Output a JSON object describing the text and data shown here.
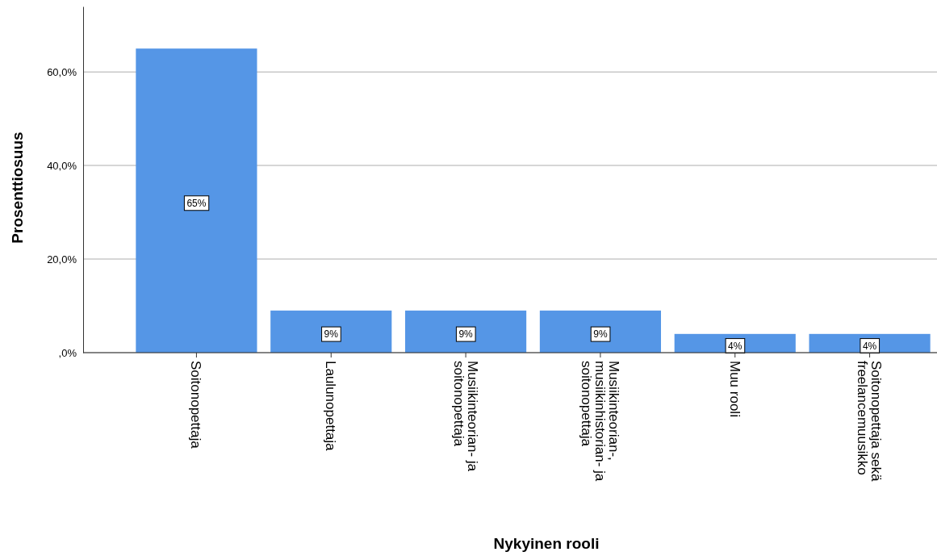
{
  "chart_data": {
    "type": "bar",
    "xlabel": "Nykyinen rooli",
    "ylabel": "Prosenttiosuus",
    "categories": [
      "Soitonopettaja",
      "Laulunopettaja",
      "Musiikinteorian- ja soitonopettaja",
      "Musiikinteorian-, musiikinhistorian- ja soitonopettaja",
      "Muu rooli",
      "Soitonopettaja sekä freelancemuusikko"
    ],
    "values": [
      65,
      9,
      9,
      9,
      4,
      4
    ],
    "value_labels": [
      "65%",
      "9%",
      "9%",
      "9%",
      "4%",
      "4%"
    ],
    "color": "#5596e6",
    "ylim": [
      0,
      74
    ],
    "yticks": [
      {
        "value": 0,
        "label": ",0%"
      },
      {
        "value": 20,
        "label": "20,0%"
      },
      {
        "value": 40,
        "label": "40,0%"
      },
      {
        "value": 60,
        "label": "60,0%"
      }
    ],
    "grid": "y"
  }
}
